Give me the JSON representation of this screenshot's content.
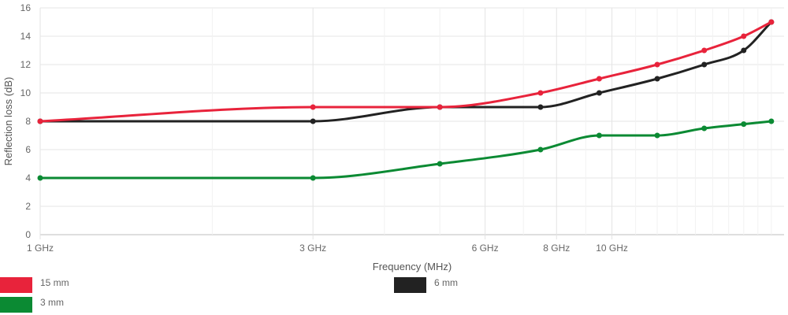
{
  "chart_data": {
    "type": "line",
    "xlabel": "Frequency (MHz)",
    "ylabel": "Reflection loss (dB)",
    "x_axis_scale": "log",
    "xlim_mhz": [
      1000,
      20000
    ],
    "ylim": [
      0,
      16
    ],
    "y_ticks": [
      0,
      2,
      4,
      6,
      8,
      10,
      12,
      14,
      16
    ],
    "x_ticks": [
      {
        "value": 1000,
        "label": "1 GHz"
      },
      {
        "value": 3000,
        "label": "3 GHz"
      },
      {
        "value": 6000,
        "label": "6 GHz"
      },
      {
        "value": 8000,
        "label": "8 GHz"
      },
      {
        "value": 10000,
        "label": "10 GHz"
      }
    ],
    "grid": true,
    "legend_position": "bottom",
    "series": [
      {
        "name": "15 mm",
        "color": "#e8233b",
        "x": [
          1000,
          3000,
          5000,
          7500,
          9500,
          12000,
          14500,
          17000,
          19000
        ],
        "y": [
          8,
          9,
          9,
          10,
          11,
          12,
          13,
          14,
          15
        ]
      },
      {
        "name": "6 mm",
        "color": "#222222",
        "x": [
          1000,
          3000,
          5000,
          7500,
          9500,
          12000,
          14500,
          17000,
          19000
        ],
        "y": [
          8,
          8,
          9,
          9,
          10,
          11,
          12,
          13,
          15
        ]
      },
      {
        "name": "3 mm",
        "color": "#0b8a33",
        "x": [
          1000,
          3000,
          5000,
          7500,
          9500,
          12000,
          14500,
          17000,
          19000
        ],
        "y": [
          4,
          4,
          5,
          6,
          7,
          7,
          7.5,
          7.8,
          8
        ]
      }
    ]
  }
}
